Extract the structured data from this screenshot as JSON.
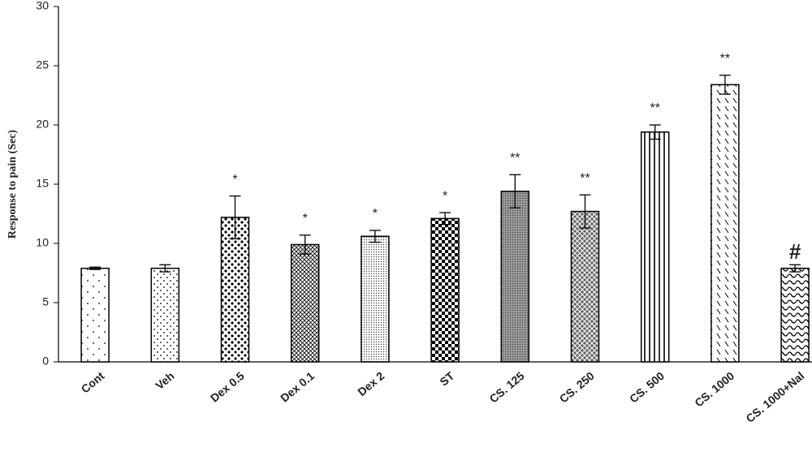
{
  "chart_data": {
    "type": "bar",
    "y_label": "Response to pain (Sec)",
    "categories": [
      "Cont",
      "Veh",
      "Dex 0.5",
      "Dex 0.1",
      "Dex 2",
      "ST",
      "CS. 125",
      "CS. 250",
      "CS. 500",
      "CS. 1000",
      "CS. 1000+Nal"
    ],
    "values": [
      7.9,
      7.9,
      12.2,
      9.9,
      10.6,
      12.1,
      14.4,
      12.7,
      19.4,
      23.4,
      7.9
    ],
    "errors": [
      0.1,
      0.3,
      1.8,
      0.8,
      0.5,
      0.5,
      1.4,
      1.4,
      0.6,
      0.8,
      0.3
    ],
    "annotations": [
      null,
      null,
      "*",
      "*",
      "*",
      "*",
      "**",
      "**",
      "**",
      "**",
      "#"
    ],
    "color": "#000000",
    "ylim": [
      0,
      30
    ],
    "yticks": [
      0,
      5,
      10,
      15,
      20,
      25,
      30
    ],
    "grid": false
  }
}
